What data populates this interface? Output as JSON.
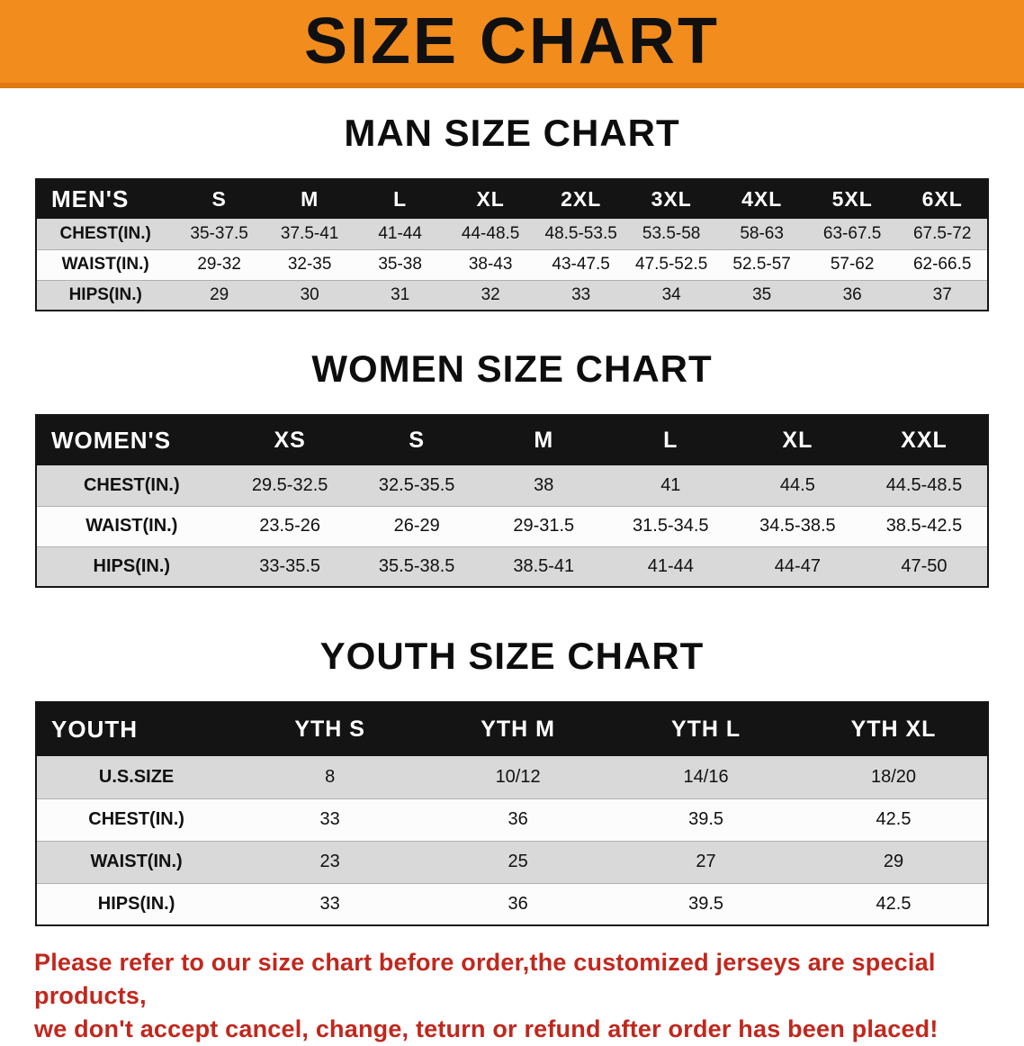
{
  "banner": {
    "title": "SIZE CHART",
    "bg_color": "#f28c1c",
    "border_color": "#de7a10",
    "text_color": "#101010"
  },
  "chart_data": [
    {
      "type": "table",
      "title": "MAN SIZE CHART",
      "header": [
        "MEN'S",
        "S",
        "M",
        "L",
        "XL",
        "2XL",
        "3XL",
        "4XL",
        "5XL",
        "6XL"
      ],
      "rows": [
        [
          "CHEST(IN.)",
          "35-37.5",
          "37.5-41",
          "41-44",
          "44-48.5",
          "48.5-53.5",
          "53.5-58",
          "58-63",
          "63-67.5",
          "67.5-72"
        ],
        [
          "WAIST(IN.)",
          "29-32",
          "32-35",
          "35-38",
          "38-43",
          "43-47.5",
          "47.5-52.5",
          "52.5-57",
          "57-62",
          "62-66.5"
        ],
        [
          "HIPS(IN.)",
          "29",
          "30",
          "31",
          "32",
          "33",
          "34",
          "35",
          "36",
          "37"
        ]
      ]
    },
    {
      "type": "table",
      "title": "WOMEN SIZE CHART",
      "header": [
        "WOMEN'S",
        "XS",
        "S",
        "M",
        "L",
        "XL",
        "XXL"
      ],
      "rows": [
        [
          "CHEST(IN.)",
          "29.5-32.5",
          "32.5-35.5",
          "38",
          "41",
          "44.5",
          "44.5-48.5"
        ],
        [
          "WAIST(IN.)",
          "23.5-26",
          "26-29",
          "29-31.5",
          "31.5-34.5",
          "34.5-38.5",
          "38.5-42.5"
        ],
        [
          "HIPS(IN.)",
          "33-35.5",
          "35.5-38.5",
          "38.5-41",
          "41-44",
          "44-47",
          "47-50"
        ]
      ]
    },
    {
      "type": "table",
      "title": "YOUTH SIZE CHART",
      "header": [
        "YOUTH",
        "YTH S",
        "YTH M",
        "YTH L",
        "YTH XL"
      ],
      "rows": [
        [
          "U.S.SIZE",
          "8",
          "10/12",
          "14/16",
          "18/20"
        ],
        [
          "CHEST(IN.)",
          "33",
          "36",
          "39.5",
          "42.5"
        ],
        [
          "WAIST(IN.)",
          "23",
          "25",
          "27",
          "29"
        ],
        [
          "HIPS(IN.)",
          "33",
          "36",
          "39.5",
          "42.5"
        ]
      ]
    }
  ],
  "footer": {
    "color": "#c1271d",
    "lines": [
      "Please refer to our size chart before order,the customized jerseys are special products,",
      "we don't accept cancel, change, teturn or refund after order has been placed!"
    ]
  }
}
